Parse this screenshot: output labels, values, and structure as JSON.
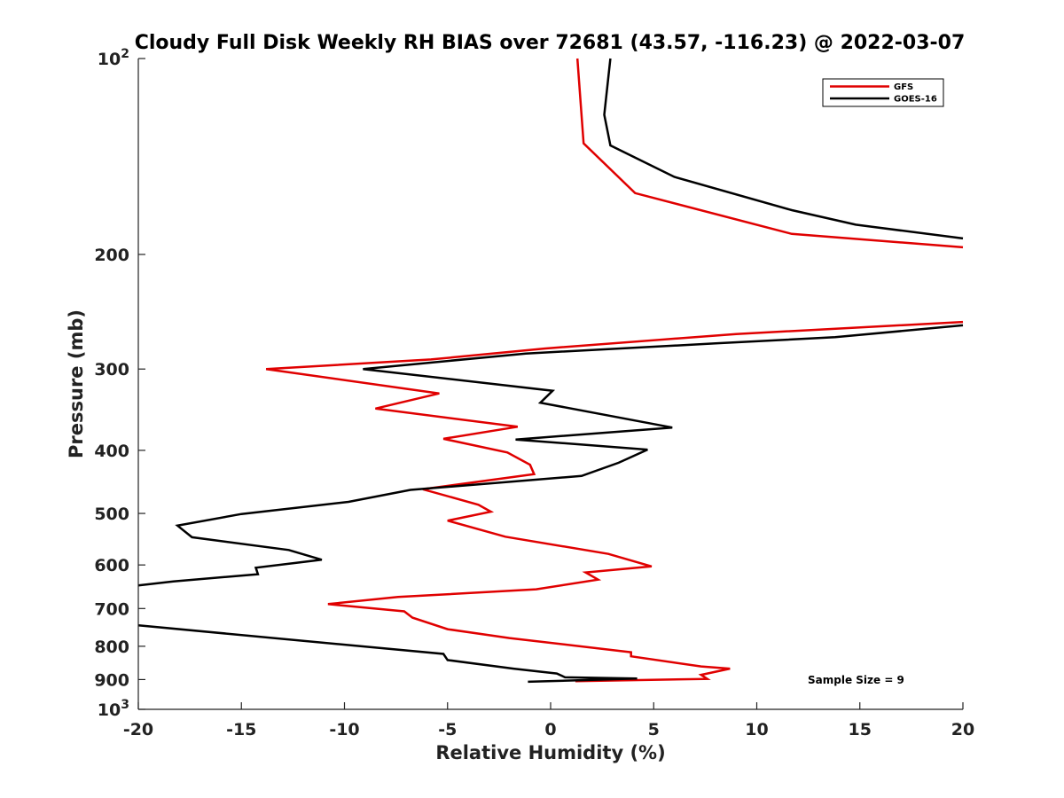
{
  "chart_data": {
    "type": "line",
    "title": "Cloudy Full Disk Weekly RH BIAS over 72681 (43.57, -116.23) @ 2022-03-07",
    "xlabel": "Relative Humidity (%)",
    "ylabel": "Pressure (mb)",
    "xlim": [
      -20,
      20
    ],
    "ylim": [
      100,
      1000
    ],
    "y_scale": "log",
    "y_reversed": true,
    "x_ticks": [
      "-20",
      "-15",
      "-10",
      "-5",
      "0",
      "5",
      "10",
      "15",
      "20"
    ],
    "y_ticks": [
      {
        "value": 100,
        "base": "10",
        "exp": "2"
      },
      {
        "value": 200,
        "label": "200"
      },
      {
        "value": 300,
        "label": "300"
      },
      {
        "value": 400,
        "label": "400"
      },
      {
        "value": 500,
        "label": "500"
      },
      {
        "value": 600,
        "label": "600"
      },
      {
        "value": 700,
        "label": "700"
      },
      {
        "value": 800,
        "label": "800"
      },
      {
        "value": 900,
        "label": "900"
      },
      {
        "value": 1000,
        "base": "10",
        "exp": "3"
      }
    ],
    "grid": false,
    "legend_position": "top-right",
    "series": [
      {
        "name": "GFS",
        "color": "#e00000",
        "segments": [
          [
            [
              1.3,
              100
            ],
            [
              1.6,
              135
            ],
            [
              4.1,
              161
            ],
            [
              11.7,
              186
            ],
            [
              20,
              195
            ]
          ],
          [
            [
              20,
              254
            ],
            [
              9.0,
              265
            ],
            [
              -0.3,
              279
            ],
            [
              -5.8,
              290
            ],
            [
              -13.8,
              300
            ],
            [
              -5.4,
              327
            ],
            [
              -8.5,
              345
            ],
            [
              -1.6,
              368
            ],
            [
              -5.2,
              384
            ],
            [
              -2.1,
              403
            ],
            [
              -1.0,
              421
            ],
            [
              -0.8,
              435
            ],
            [
              -6.2,
              459
            ],
            [
              -3.5,
              485
            ],
            [
              -2.9,
              497
            ],
            [
              -5.0,
              513
            ],
            [
              -2.2,
              543
            ],
            [
              2.8,
              577
            ],
            [
              4.9,
              603
            ],
            [
              1.7,
              616
            ],
            [
              2.3,
              632
            ],
            [
              -0.7,
              654
            ],
            [
              -7.4,
              672
            ],
            [
              -10.8,
              689
            ],
            [
              -7.1,
              707
            ],
            [
              -6.7,
              723
            ],
            [
              -5.0,
              753
            ],
            [
              -2.0,
              777
            ],
            [
              3.9,
              817
            ],
            [
              3.9,
              829
            ],
            [
              7.3,
              859
            ],
            [
              8.7,
              866
            ],
            [
              7.3,
              885
            ],
            [
              7.6,
              898
            ],
            [
              1.2,
              905
            ]
          ]
        ]
      },
      {
        "name": "GOES-16",
        "color": "#000000",
        "segments": [
          [
            [
              2.9,
              100
            ],
            [
              2.6,
              122
            ],
            [
              2.9,
              136
            ],
            [
              6.0,
              152
            ],
            [
              11.7,
              171
            ],
            [
              14.8,
              180
            ],
            [
              20,
              189
            ]
          ],
          [
            [
              20,
              257
            ],
            [
              13.8,
              268
            ],
            [
              8.0,
              274
            ],
            [
              -1.2,
              284
            ],
            [
              -9.1,
              300
            ],
            [
              0.1,
              324
            ],
            [
              -0.5,
              338
            ],
            [
              5.9,
              369
            ],
            [
              -1.7,
              385
            ],
            [
              4.7,
              399
            ],
            [
              3.3,
              418
            ],
            [
              1.5,
              438
            ],
            [
              -6.8,
              460
            ],
            [
              -9.8,
              480
            ],
            [
              -15.0,
              501
            ],
            [
              -18.1,
              522
            ],
            [
              -17.4,
              544
            ],
            [
              -12.7,
              569
            ],
            [
              -11.1,
              589
            ],
            [
              -14.3,
              606
            ],
            [
              -14.2,
              620
            ],
            [
              -18.3,
              636
            ],
            [
              -20,
              645
            ]
          ],
          [
            [
              -20,
              743
            ],
            [
              -5.2,
              822
            ],
            [
              -5.0,
              840
            ],
            [
              -1.8,
              866
            ],
            [
              0.3,
              881
            ],
            [
              0.7,
              893
            ],
            [
              4.2,
              897
            ],
            [
              -1.1,
              907
            ]
          ]
        ]
      }
    ],
    "annotation": "Sample Size = 9"
  }
}
